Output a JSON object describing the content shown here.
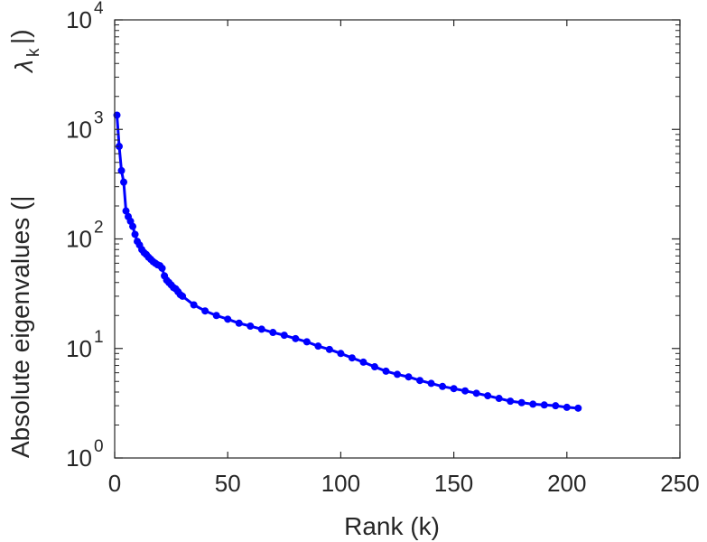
{
  "chart_data": {
    "type": "line",
    "xlabel": "Rank (k)",
    "ylabel_main": "Absolute eigenvalues (|",
    "ylabel_symbol": "λ",
    "ylabel_sub": "k",
    "ylabel_close": "|)",
    "xlim": [
      0,
      250
    ],
    "ylim": [
      1,
      10000
    ],
    "yscale": "log",
    "grid": false,
    "legend": "none",
    "x_ticks": [
      {
        "value": 0,
        "label": "0"
      },
      {
        "value": 50,
        "label": "50"
      },
      {
        "value": 100,
        "label": "100"
      },
      {
        "value": 150,
        "label": "150"
      },
      {
        "value": 200,
        "label": "200"
      },
      {
        "value": 250,
        "label": "250"
      }
    ],
    "y_ticks": [
      {
        "value": 1,
        "base": "10",
        "exp": "0"
      },
      {
        "value": 10,
        "base": "10",
        "exp": "1"
      },
      {
        "value": 100,
        "base": "10",
        "exp": "2"
      },
      {
        "value": 1000,
        "base": "10",
        "exp": "3"
      },
      {
        "value": 10000,
        "base": "10",
        "exp": "4"
      }
    ],
    "series": [
      {
        "color": "#0000ff",
        "marker": "circle",
        "x": [
          1,
          2,
          3,
          4,
          5,
          6,
          7,
          8,
          9,
          10,
          11,
          12,
          13,
          14,
          15,
          16,
          17,
          18,
          19,
          20,
          21,
          22,
          23,
          24,
          25,
          26,
          27,
          28,
          29,
          30,
          35,
          40,
          45,
          50,
          55,
          60,
          65,
          70,
          75,
          80,
          85,
          90,
          95,
          100,
          105,
          110,
          115,
          120,
          125,
          130,
          135,
          140,
          145,
          150,
          155,
          160,
          165,
          170,
          175,
          180,
          185,
          190,
          195,
          200,
          205
        ],
        "y": [
          1350,
          700,
          420,
          330,
          180,
          160,
          145,
          130,
          110,
          95,
          88,
          80,
          75,
          72,
          68,
          65,
          62,
          60,
          58,
          57,
          54,
          46,
          42,
          40,
          38,
          36,
          35,
          33,
          31,
          30,
          25,
          22,
          20,
          18.5,
          17,
          16,
          15,
          14,
          13.2,
          12.3,
          11.5,
          10.5,
          9.8,
          9.0,
          8.2,
          7.5,
          6.8,
          6.2,
          5.8,
          5.5,
          5.1,
          4.8,
          4.5,
          4.3,
          4.1,
          3.9,
          3.7,
          3.5,
          3.3,
          3.2,
          3.1,
          3.05,
          3.0,
          2.9,
          2.85
        ]
      }
    ]
  }
}
